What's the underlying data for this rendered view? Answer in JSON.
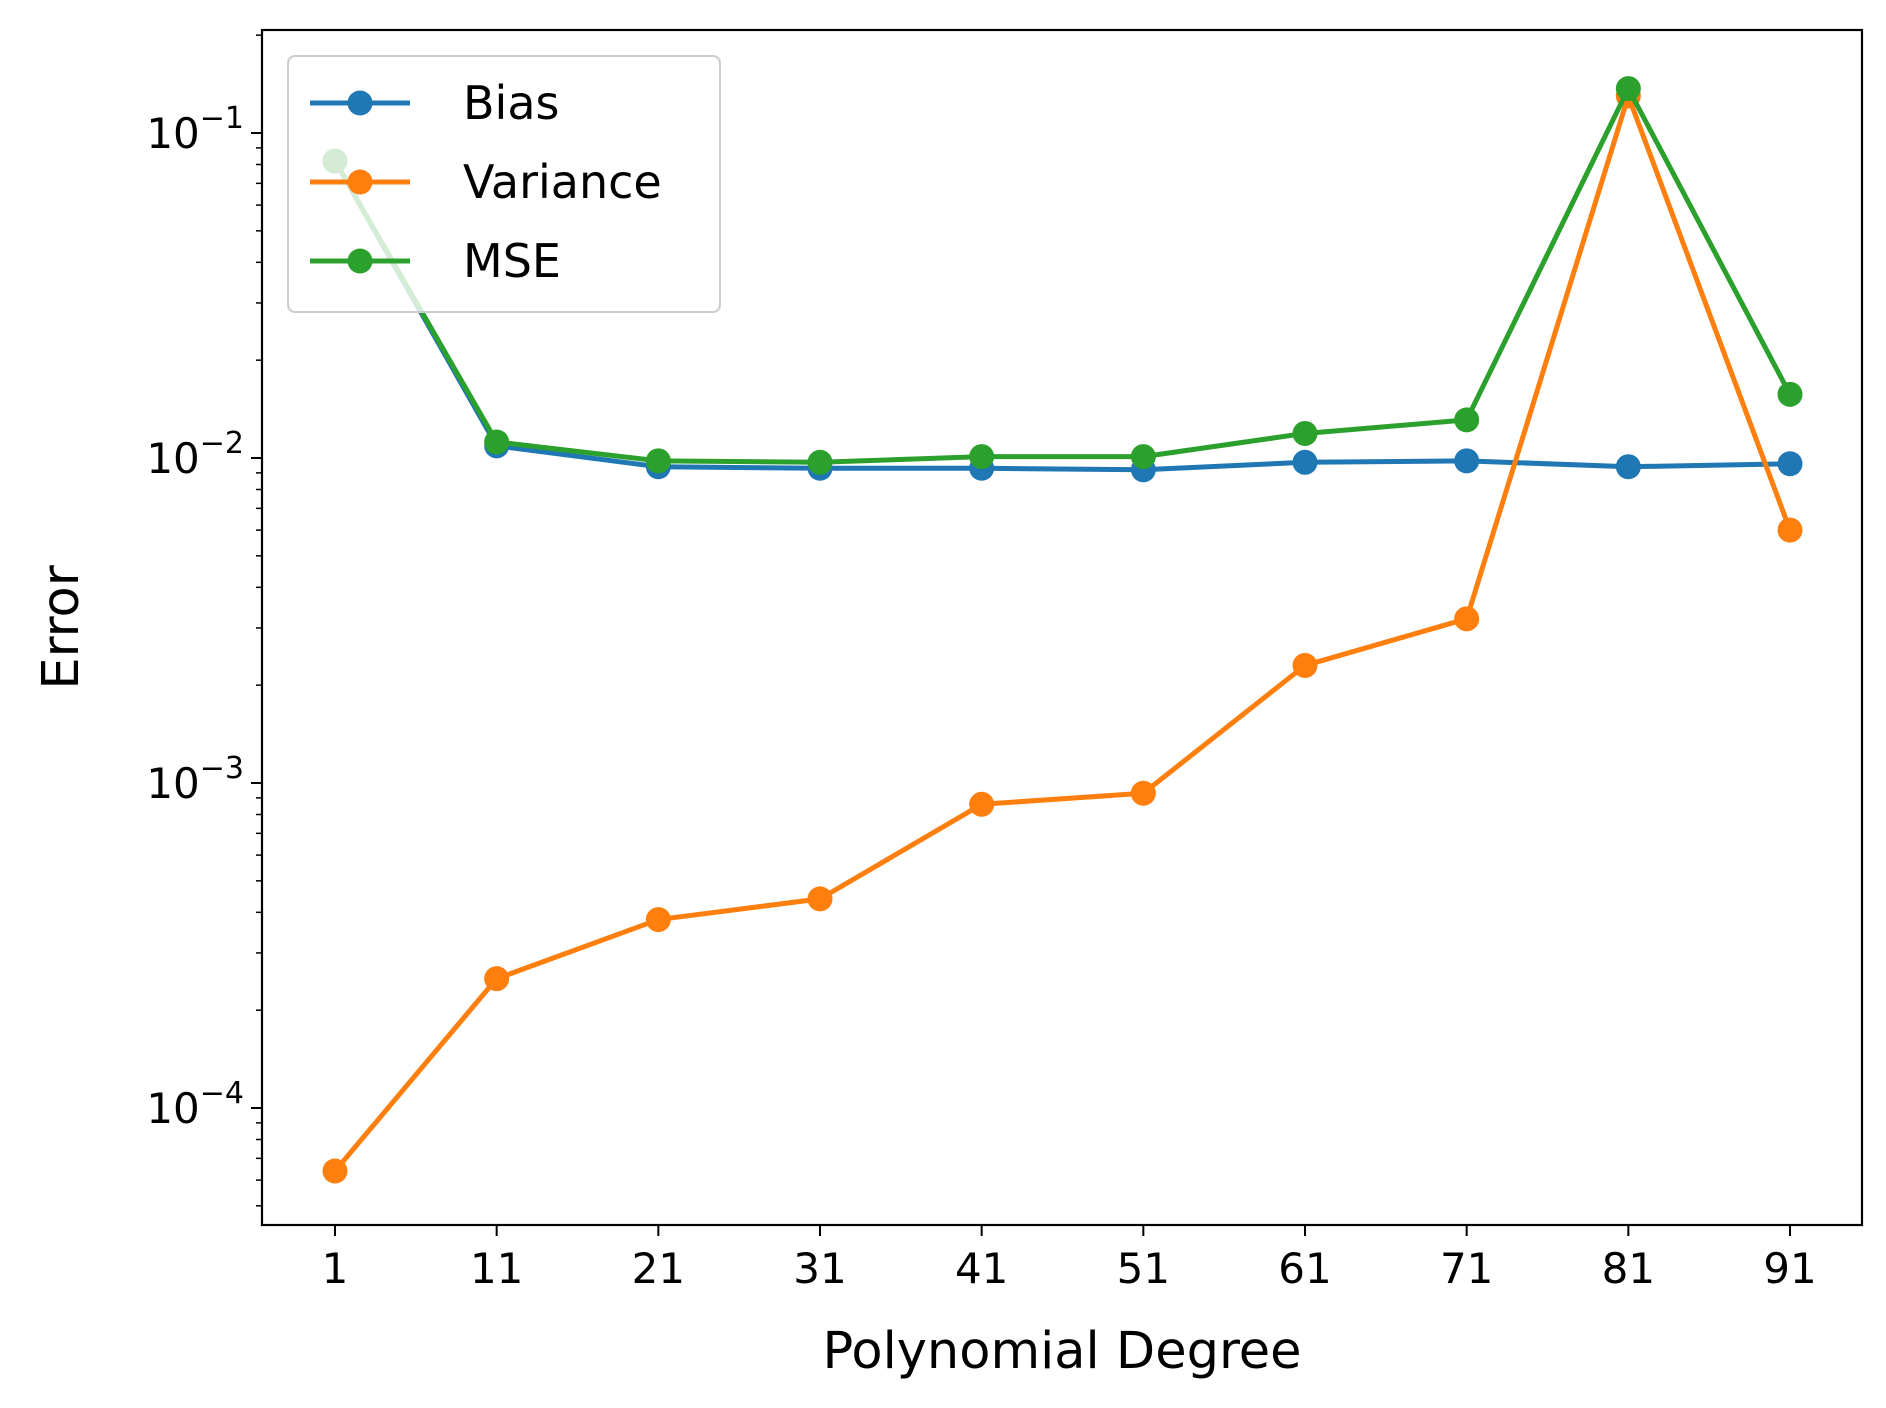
{
  "chart_data": {
    "type": "line",
    "xlabel": "Polynomial Degree",
    "ylabel": "Error",
    "yscale": "log",
    "ylim": [
      4.5e-05,
      0.2
    ],
    "x": [
      1,
      11,
      21,
      31,
      41,
      51,
      61,
      71,
      81,
      91
    ],
    "xticks": [
      "1",
      "11",
      "21",
      "31",
      "41",
      "51",
      "61",
      "71",
      "81",
      "91"
    ],
    "yticks": [
      {
        "value": 0.0001,
        "base": "10",
        "exp": "−4"
      },
      {
        "value": 0.001,
        "base": "10",
        "exp": "−3"
      },
      {
        "value": 0.01,
        "base": "10",
        "exp": "−2"
      },
      {
        "value": 0.1,
        "base": "10",
        "exp": "−1"
      }
    ],
    "grid": false,
    "legend": "top-left",
    "series": [
      {
        "name": "Bias",
        "color": "#1f77b4",
        "values": [
          0.082,
          0.0109,
          0.0094,
          0.0093,
          0.0093,
          0.0092,
          0.0097,
          0.0098,
          0.0094,
          0.0096
        ]
      },
      {
        "name": "Variance",
        "color": "#ff7f0e",
        "values": [
          6.4e-05,
          0.00025,
          0.00038,
          0.00044,
          0.00086,
          0.00093,
          0.0023,
          0.0032,
          0.13,
          0.006
        ]
      },
      {
        "name": "MSE",
        "color": "#2ca02c",
        "values": [
          0.082,
          0.0112,
          0.0098,
          0.0097,
          0.0101,
          0.0101,
          0.0119,
          0.0131,
          0.137,
          0.0157
        ]
      }
    ]
  }
}
